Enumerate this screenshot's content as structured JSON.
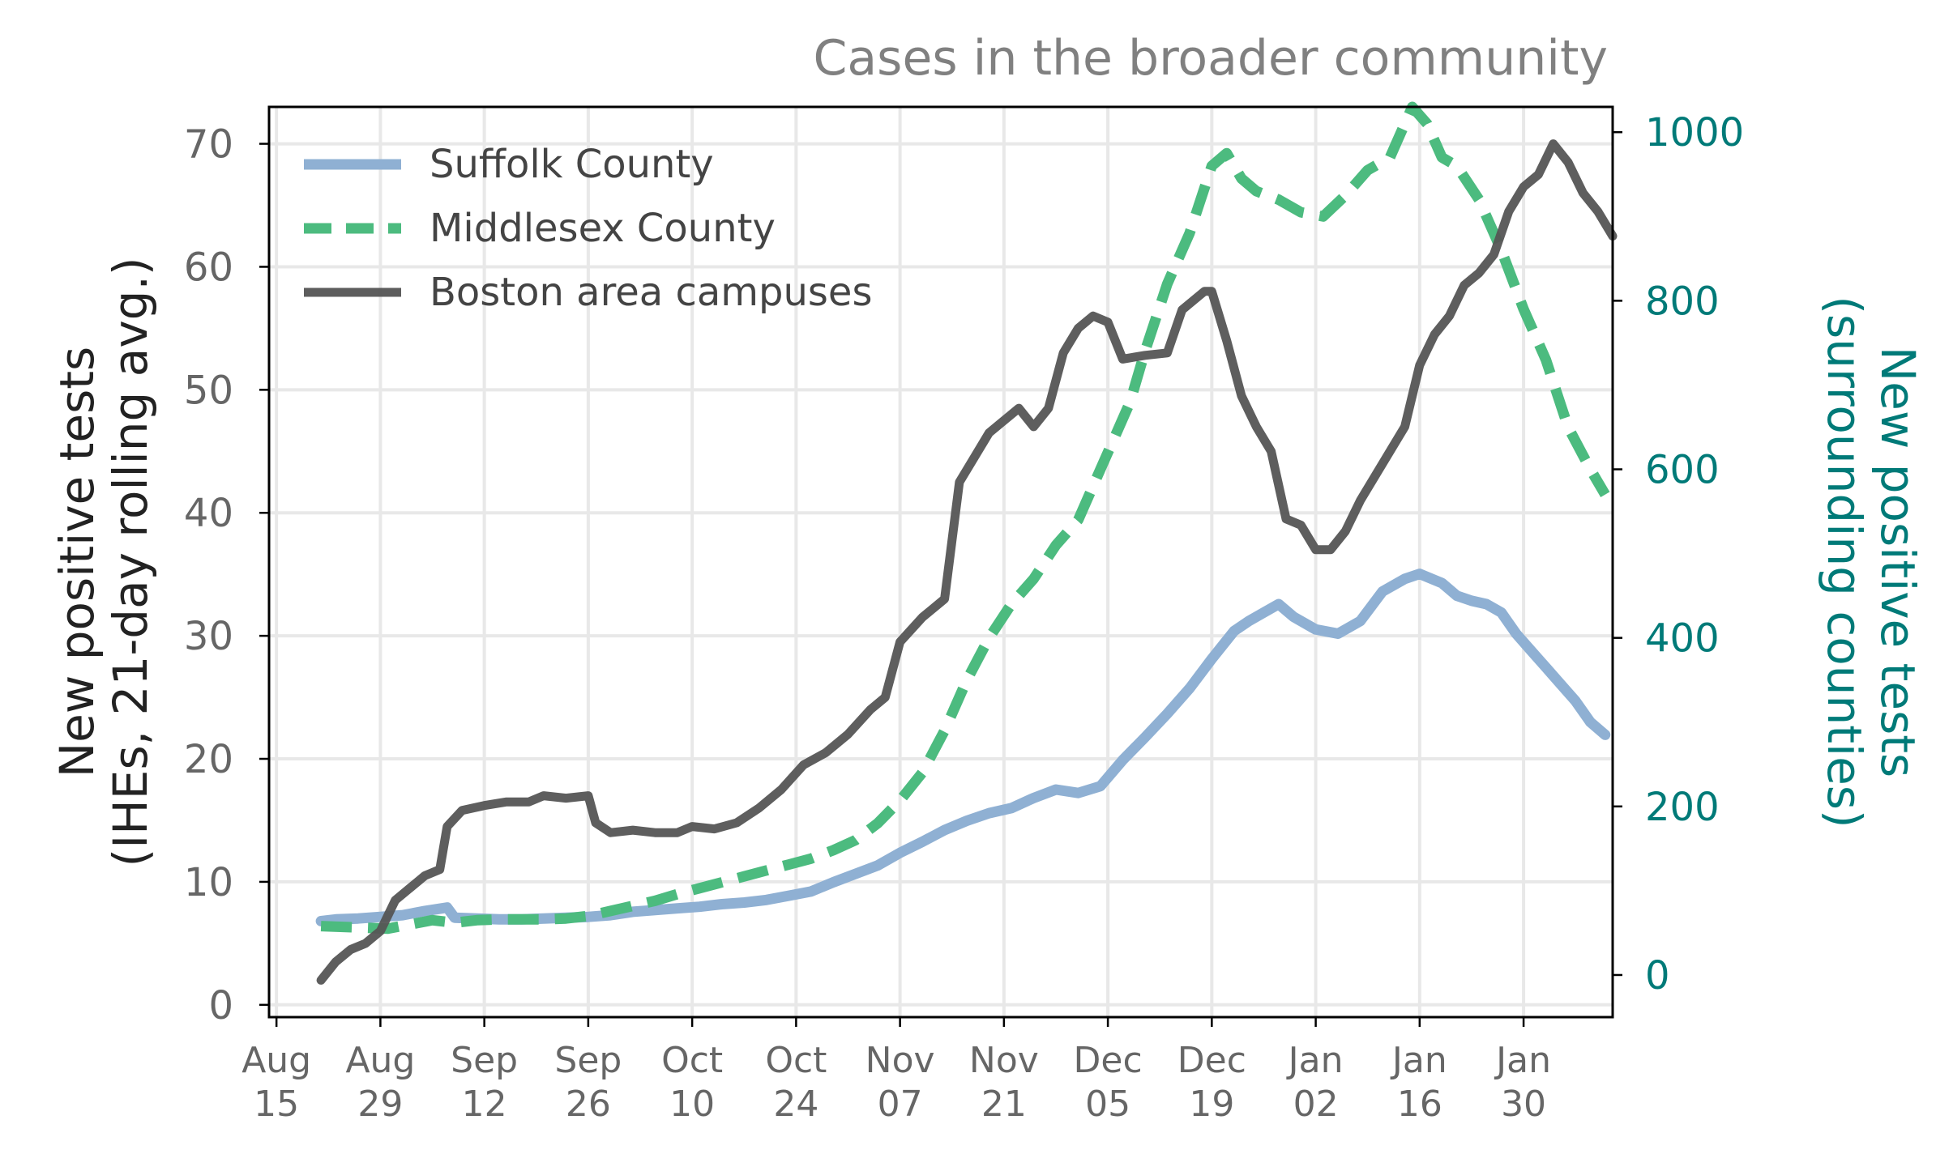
{
  "chart_data": {
    "type": "line",
    "title": "Cases in the broader community",
    "ylabel": "New positive tests\n(IHEs, 21-day rolling avg.)",
    "y2label": "New positive tests\n(surrounding counties)",
    "x_ticks": [
      "Aug\n15",
      "Aug\n29",
      "Sep\n12",
      "Sep\n26",
      "Oct\n10",
      "Oct\n24",
      "Nov\n07",
      "Nov\n21",
      "Dec\n05",
      "Dec\n19",
      "Jan\n02",
      "Jan\n16",
      "Jan\n30"
    ],
    "x_tick_dates": [
      "2020-08-15",
      "2020-08-29",
      "2020-09-12",
      "2020-09-26",
      "2020-10-10",
      "2020-10-24",
      "2020-11-07",
      "2020-11-21",
      "2020-12-05",
      "2020-12-19",
      "2021-01-02",
      "2021-01-16",
      "2021-01-30"
    ],
    "xlim": [
      "2020-08-14",
      "2021-02-11"
    ],
    "ylim": [
      -1,
      73
    ],
    "y_ticks": [
      0,
      10,
      20,
      30,
      40,
      50,
      60,
      70
    ],
    "y2lim": [
      -50,
      1030
    ],
    "y2_ticks": [
      0,
      200,
      400,
      600,
      800,
      1000
    ],
    "grid": true,
    "legend_position": "top-left",
    "colors": {
      "suffolk": "#8fb0d3",
      "middlesex": "#4cbb7f",
      "campuses": "#555555",
      "right_axis": "#007a78",
      "title": "#808080",
      "tick_text": "#666666"
    },
    "series": [
      {
        "name": "Suffolk County",
        "axis": "right",
        "style": "solid",
        "points": [
          [
            "2020-08-21",
            64
          ],
          [
            "2020-08-23",
            66
          ],
          [
            "2020-08-26",
            67
          ],
          [
            "2020-08-29",
            69
          ],
          [
            "2020-09-01",
            71
          ],
          [
            "2020-09-04",
            76
          ],
          [
            "2020-09-07",
            80
          ],
          [
            "2020-09-08",
            68
          ],
          [
            "2020-09-11",
            67
          ],
          [
            "2020-09-14",
            66
          ],
          [
            "2020-09-17",
            66
          ],
          [
            "2020-09-20",
            67
          ],
          [
            "2020-09-23",
            68
          ],
          [
            "2020-09-26",
            69
          ],
          [
            "2020-09-29",
            71
          ],
          [
            "2020-10-02",
            75
          ],
          [
            "2020-10-05",
            77
          ],
          [
            "2020-10-08",
            79
          ],
          [
            "2020-10-11",
            81
          ],
          [
            "2020-10-14",
            84
          ],
          [
            "2020-10-17",
            86
          ],
          [
            "2020-10-20",
            89
          ],
          [
            "2020-10-23",
            94
          ],
          [
            "2020-10-26",
            99
          ],
          [
            "2020-10-29",
            110
          ],
          [
            "2020-11-01",
            120
          ],
          [
            "2020-11-04",
            130
          ],
          [
            "2020-11-07",
            145
          ],
          [
            "2020-11-10",
            158
          ],
          [
            "2020-11-13",
            172
          ],
          [
            "2020-11-16",
            183
          ],
          [
            "2020-11-19",
            192
          ],
          [
            "2020-11-22",
            198
          ],
          [
            "2020-11-25",
            210
          ],
          [
            "2020-11-28",
            220
          ],
          [
            "2020-12-01",
            216
          ],
          [
            "2020-12-04",
            224
          ],
          [
            "2020-12-07",
            255
          ],
          [
            "2020-12-10",
            282
          ],
          [
            "2020-12-13",
            310
          ],
          [
            "2020-12-16",
            340
          ],
          [
            "2020-12-19",
            375
          ],
          [
            "2020-12-22",
            408
          ],
          [
            "2020-12-24",
            420
          ],
          [
            "2020-12-26",
            430
          ],
          [
            "2020-12-28",
            440
          ],
          [
            "2020-12-30",
            425
          ],
          [
            "2021-01-02",
            410
          ],
          [
            "2021-01-05",
            405
          ],
          [
            "2021-01-08",
            420
          ],
          [
            "2021-01-11",
            455
          ],
          [
            "2021-01-14",
            470
          ],
          [
            "2021-01-16",
            476
          ],
          [
            "2021-01-19",
            465
          ],
          [
            "2021-01-21",
            450
          ],
          [
            "2021-01-23",
            444
          ],
          [
            "2021-01-25",
            440
          ],
          [
            "2021-01-27",
            430
          ],
          [
            "2021-01-29",
            405
          ],
          [
            "2021-01-31",
            385
          ],
          [
            "2021-02-02",
            365
          ],
          [
            "2021-02-04",
            345
          ],
          [
            "2021-02-06",
            325
          ],
          [
            "2021-02-08",
            300
          ],
          [
            "2021-02-10",
            285
          ]
        ]
      },
      {
        "name": "Middlesex County",
        "axis": "right",
        "style": "dashed",
        "points": [
          [
            "2020-08-21",
            58
          ],
          [
            "2020-08-24",
            57
          ],
          [
            "2020-08-27",
            56
          ],
          [
            "2020-08-30",
            55
          ],
          [
            "2020-09-02",
            60
          ],
          [
            "2020-09-05",
            65
          ],
          [
            "2020-09-08",
            62
          ],
          [
            "2020-09-11",
            65
          ],
          [
            "2020-09-14",
            66
          ],
          [
            "2020-09-17",
            66
          ],
          [
            "2020-09-20",
            66
          ],
          [
            "2020-09-23",
            67
          ],
          [
            "2020-09-26",
            70
          ],
          [
            "2020-09-29",
            76
          ],
          [
            "2020-10-02",
            82
          ],
          [
            "2020-10-05",
            88
          ],
          [
            "2020-10-08",
            96
          ],
          [
            "2020-10-11",
            103
          ],
          [
            "2020-10-14",
            110
          ],
          [
            "2020-10-17",
            117
          ],
          [
            "2020-10-20",
            124
          ],
          [
            "2020-10-23",
            131
          ],
          [
            "2020-10-26",
            138
          ],
          [
            "2020-10-29",
            148
          ],
          [
            "2020-11-01",
            160
          ],
          [
            "2020-11-04",
            180
          ],
          [
            "2020-11-07",
            207
          ],
          [
            "2020-11-10",
            240
          ],
          [
            "2020-11-13",
            290
          ],
          [
            "2020-11-16",
            350
          ],
          [
            "2020-11-19",
            400
          ],
          [
            "2020-11-22",
            440
          ],
          [
            "2020-11-25",
            470
          ],
          [
            "2020-11-28",
            510
          ],
          [
            "2020-12-01",
            540
          ],
          [
            "2020-12-04",
            600
          ],
          [
            "2020-12-06",
            640
          ],
          [
            "2020-12-08",
            680
          ],
          [
            "2020-12-10",
            740
          ],
          [
            "2020-12-13",
            820
          ],
          [
            "2020-12-16",
            880
          ],
          [
            "2020-12-19",
            960
          ],
          [
            "2020-12-21",
            975
          ],
          [
            "2020-12-23",
            945
          ],
          [
            "2020-12-25",
            930
          ],
          [
            "2020-12-28",
            920
          ],
          [
            "2020-12-31",
            905
          ],
          [
            "2021-01-03",
            900
          ],
          [
            "2021-01-06",
            925
          ],
          [
            "2021-01-09",
            955
          ],
          [
            "2021-01-12",
            970
          ],
          [
            "2021-01-15",
            1030
          ],
          [
            "2021-01-17",
            1010
          ],
          [
            "2021-01-19",
            970
          ],
          [
            "2021-01-21",
            960
          ],
          [
            "2021-01-24",
            920
          ],
          [
            "2021-01-27",
            860
          ],
          [
            "2021-01-30",
            790
          ],
          [
            "2021-02-02",
            730
          ],
          [
            "2021-02-05",
            650
          ],
          [
            "2021-02-08",
            600
          ],
          [
            "2021-02-10",
            570
          ]
        ]
      },
      {
        "name": "Boston area campuses",
        "axis": "left",
        "style": "solid",
        "points": [
          [
            "2020-08-21",
            2.0
          ],
          [
            "2020-08-23",
            3.5
          ],
          [
            "2020-08-25",
            4.5
          ],
          [
            "2020-08-27",
            5.0
          ],
          [
            "2020-08-29",
            6.0
          ],
          [
            "2020-08-31",
            8.5
          ],
          [
            "2020-09-02",
            9.5
          ],
          [
            "2020-09-04",
            10.5
          ],
          [
            "2020-09-06",
            11.0
          ],
          [
            "2020-09-07",
            14.5
          ],
          [
            "2020-09-09",
            15.8
          ],
          [
            "2020-09-12",
            16.2
          ],
          [
            "2020-09-15",
            16.5
          ],
          [
            "2020-09-18",
            16.5
          ],
          [
            "2020-09-20",
            17.0
          ],
          [
            "2020-09-23",
            16.8
          ],
          [
            "2020-09-26",
            17.0
          ],
          [
            "2020-09-27",
            14.8
          ],
          [
            "2020-09-29",
            14.0
          ],
          [
            "2020-10-02",
            14.2
          ],
          [
            "2020-10-05",
            14.0
          ],
          [
            "2020-10-08",
            14.0
          ],
          [
            "2020-10-10",
            14.5
          ],
          [
            "2020-10-13",
            14.3
          ],
          [
            "2020-10-16",
            14.8
          ],
          [
            "2020-10-19",
            16.0
          ],
          [
            "2020-10-22",
            17.5
          ],
          [
            "2020-10-25",
            19.5
          ],
          [
            "2020-10-28",
            20.5
          ],
          [
            "2020-10-31",
            22.0
          ],
          [
            "2020-11-03",
            24.0
          ],
          [
            "2020-11-05",
            25.0
          ],
          [
            "2020-11-07",
            29.5
          ],
          [
            "2020-11-10",
            31.5
          ],
          [
            "2020-11-13",
            33.0
          ],
          [
            "2020-11-15",
            42.5
          ],
          [
            "2020-11-17",
            44.5
          ],
          [
            "2020-11-19",
            46.5
          ],
          [
            "2020-11-21",
            47.5
          ],
          [
            "2020-11-23",
            48.5
          ],
          [
            "2020-11-25",
            47.0
          ],
          [
            "2020-11-27",
            48.5
          ],
          [
            "2020-11-29",
            53.0
          ],
          [
            "2020-12-01",
            55.0
          ],
          [
            "2020-12-03",
            56.0
          ],
          [
            "2020-12-05",
            55.5
          ],
          [
            "2020-12-07",
            52.5
          ],
          [
            "2020-12-10",
            52.8
          ],
          [
            "2020-12-13",
            53.0
          ],
          [
            "2020-12-15",
            56.5
          ],
          [
            "2020-12-18",
            58.0
          ],
          [
            "2020-12-19",
            58.0
          ],
          [
            "2020-12-21",
            54.0
          ],
          [
            "2020-12-23",
            49.5
          ],
          [
            "2020-12-25",
            47.0
          ],
          [
            "2020-12-27",
            45.0
          ],
          [
            "2020-12-29",
            39.5
          ],
          [
            "2020-12-31",
            39.0
          ],
          [
            "2021-01-02",
            37.0
          ],
          [
            "2021-01-04",
            37.0
          ],
          [
            "2021-01-06",
            38.5
          ],
          [
            "2021-01-08",
            41.0
          ],
          [
            "2021-01-10",
            43.0
          ],
          [
            "2021-01-12",
            45.0
          ],
          [
            "2021-01-14",
            47.0
          ],
          [
            "2021-01-16",
            52.0
          ],
          [
            "2021-01-18",
            54.5
          ],
          [
            "2021-01-20",
            56.0
          ],
          [
            "2021-01-22",
            58.5
          ],
          [
            "2021-01-24",
            59.5
          ],
          [
            "2021-01-26",
            61.0
          ],
          [
            "2021-01-28",
            64.5
          ],
          [
            "2021-01-30",
            66.5
          ],
          [
            "2021-02-01",
            67.5
          ],
          [
            "2021-02-03",
            70.0
          ],
          [
            "2021-02-05",
            68.5
          ],
          [
            "2021-02-07",
            66.0
          ],
          [
            "2021-02-09",
            64.5
          ],
          [
            "2021-02-11",
            62.5
          ]
        ]
      }
    ]
  }
}
